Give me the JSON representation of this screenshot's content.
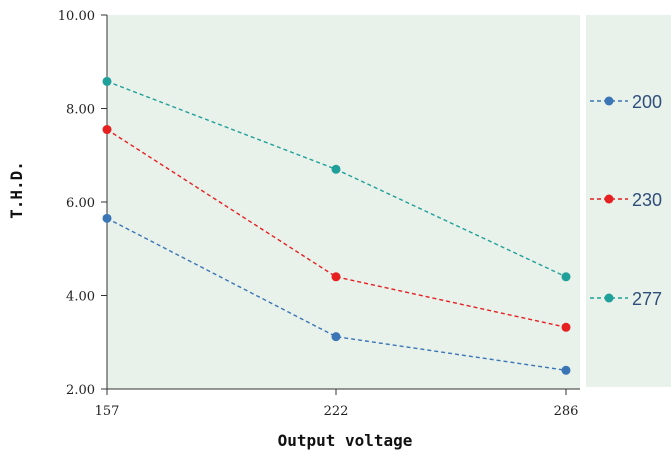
{
  "chart_data": {
    "type": "line",
    "title": "",
    "xlabel": "Output voltage",
    "ylabel": "T.H.D.",
    "categories": [
      "157",
      "222",
      "286"
    ],
    "ylim": [
      2.0,
      10.0
    ],
    "yticks": [
      "2.00",
      "4.00",
      "6.00",
      "8.00",
      "10.00"
    ],
    "grid": false,
    "legend_position": "right",
    "plot_background": "#e8f1ea",
    "series": [
      {
        "name": "200",
        "color": "#3a76b6",
        "values": [
          5.65,
          3.12,
          2.4
        ]
      },
      {
        "name": "230",
        "color": "#e62020",
        "values": [
          7.55,
          4.4,
          3.32
        ]
      },
      {
        "name": "277",
        "color": "#20a09a",
        "values": [
          8.58,
          6.7,
          4.4
        ]
      }
    ]
  }
}
